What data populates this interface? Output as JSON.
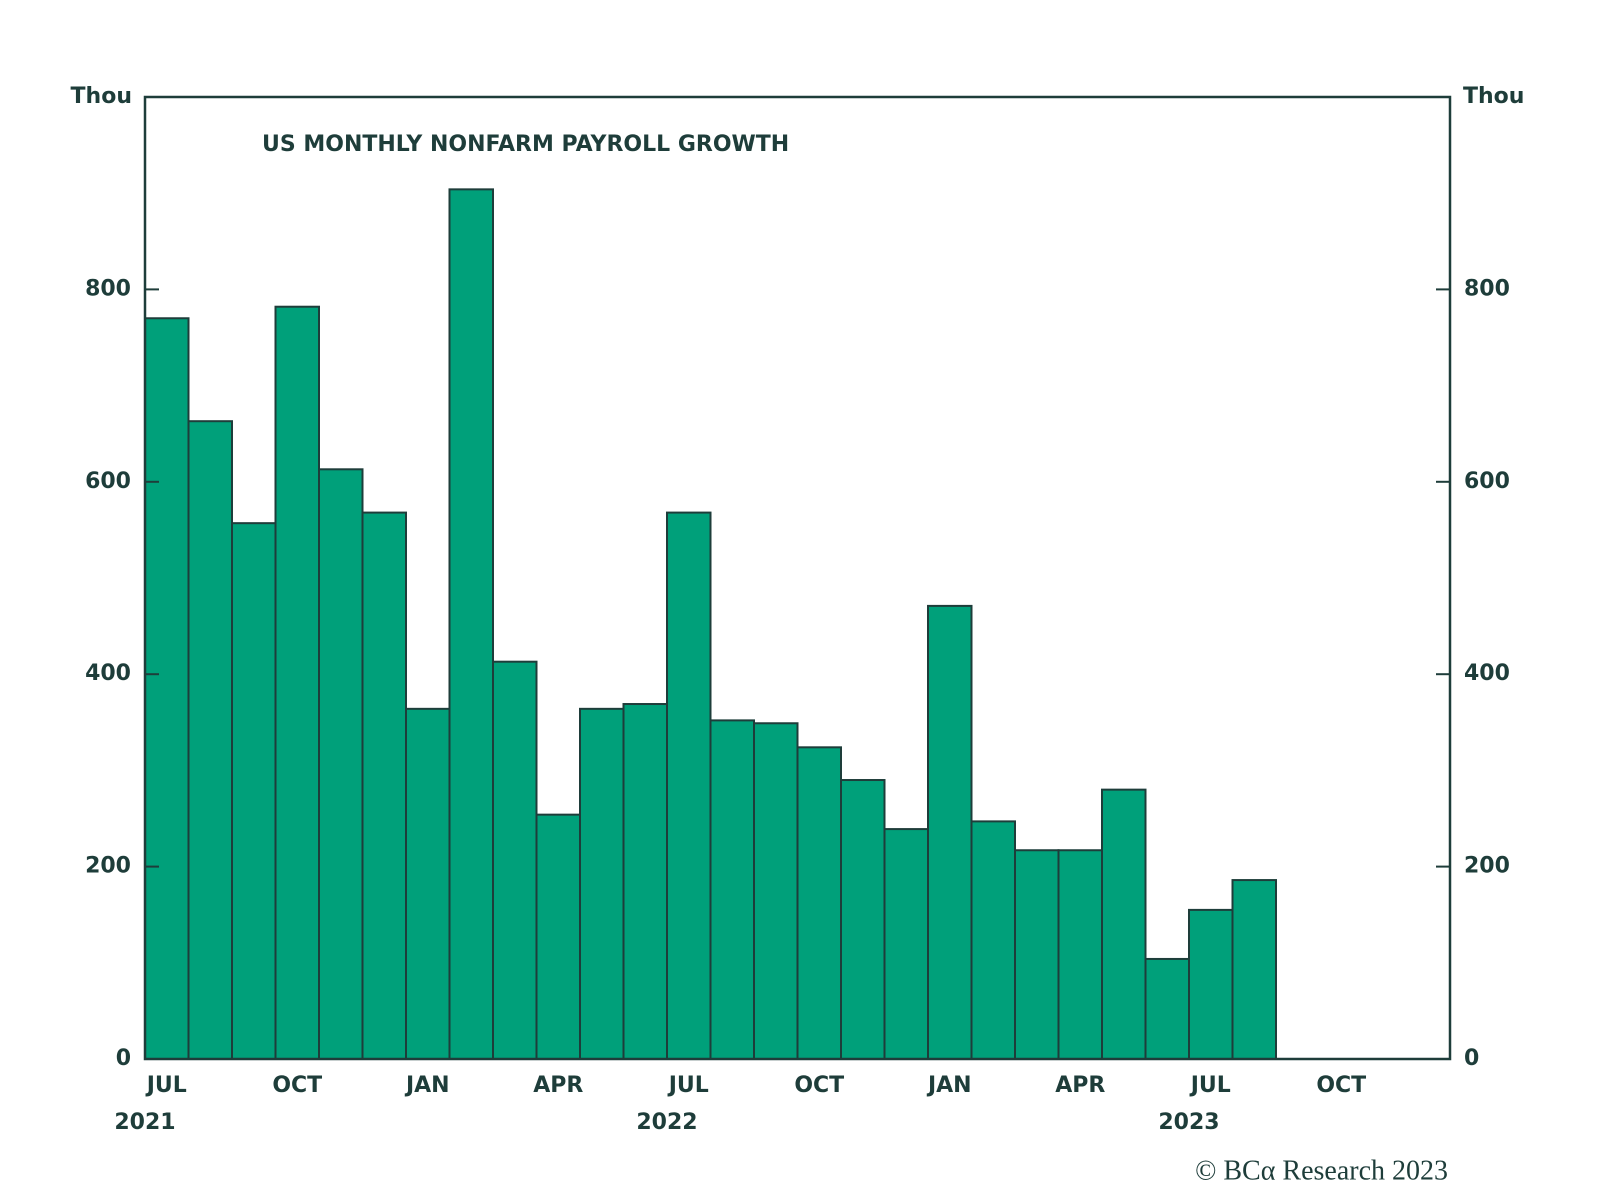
{
  "chart_data": {
    "type": "bar",
    "title": "US MONTHLY NONFARM PAYROLL GROWTH",
    "y_label": "Thou",
    "y2_label": "Thou",
    "source": "© BCα Research 2023",
    "categories": [
      "JUL",
      null,
      null,
      "OCT",
      null,
      null,
      "JAN",
      null,
      null,
      "APR",
      null,
      null,
      "JUL",
      null,
      null,
      "OCT",
      null,
      null,
      "JAN",
      null,
      null,
      "APR",
      null,
      null,
      "JUL",
      null,
      null,
      "OCT",
      null,
      null
    ],
    "years": [
      "2021",
      null,
      null,
      null,
      null,
      null,
      null,
      null,
      null,
      null,
      null,
      null,
      "2022",
      null,
      null,
      null,
      null,
      null,
      null,
      null,
      null,
      null,
      null,
      null,
      "2023",
      null,
      null,
      null,
      null,
      null
    ],
    "values": [
      770,
      663,
      557,
      782,
      613,
      568,
      364,
      904,
      413,
      254,
      364,
      369,
      568,
      352,
      349,
      324,
      290,
      239,
      471,
      247,
      217,
      217,
      280,
      104,
      155,
      186,
      null,
      null,
      null,
      null
    ],
    "color": "#00a07a",
    "ylim": [
      0,
      1000
    ],
    "yticks": [
      0,
      200,
      400,
      600,
      800
    ],
    "y2lim": [
      0,
      1000
    ],
    "y2ticks": [
      0,
      200,
      400,
      600,
      800
    ]
  }
}
